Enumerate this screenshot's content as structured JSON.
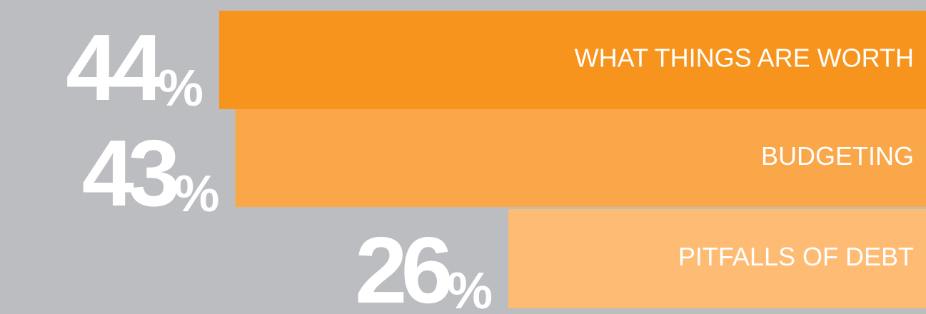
{
  "chart_data": {
    "type": "bar",
    "orientation": "horizontal",
    "categories": [
      "WHAT THINGS ARE WORTH",
      "BUDGETING",
      "PITFALLS OF DEBT"
    ],
    "values": [
      44,
      43,
      26
    ],
    "value_labels": [
      "44%",
      "43%",
      "26%"
    ],
    "colors": [
      "#f7941d",
      "#faa74a",
      "#fdbb74"
    ]
  }
}
